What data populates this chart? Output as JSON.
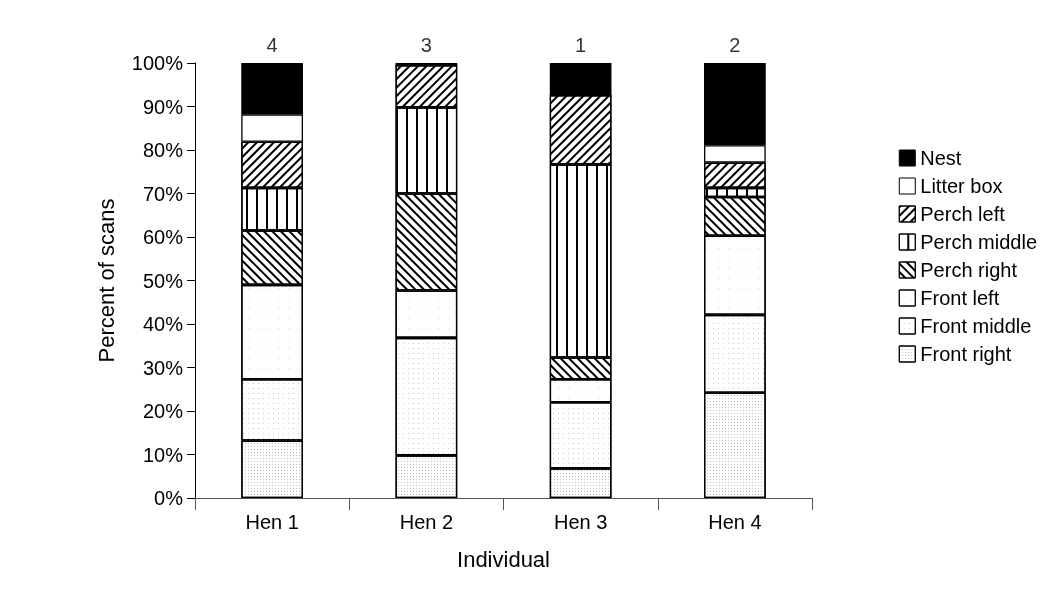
{
  "chart_data": {
    "type": "bar",
    "stacked": true,
    "xlabel": "Individual",
    "ylabel": "Percent of scans",
    "categories": [
      "Hen 1",
      "Hen 2",
      "Hen 3",
      "Hen 4"
    ],
    "series": [
      {
        "name": "Front right",
        "color": "#ffffff",
        "values": [
          13.2,
          9.8,
          6.8,
          24.2
        ]
      },
      {
        "name": "Front middle",
        "color": "#ffffff",
        "values": [
          14.1,
          27.0,
          15.2,
          17.9
        ]
      },
      {
        "name": "Front left",
        "color": "#ffffff",
        "values": [
          21.7,
          10.9,
          5.3,
          18.2
        ]
      },
      {
        "name": "Perch right",
        "color": "#ffffff",
        "values": [
          12.5,
          22.3,
          5.0,
          8.9
        ]
      },
      {
        "name": "Perch middle",
        "color": "#ffffff",
        "values": [
          9.8,
          19.8,
          44.4,
          2.1
        ]
      },
      {
        "name": "Perch left",
        "color": "#ffffff",
        "values": [
          10.6,
          9.7,
          15.9,
          5.8
        ]
      },
      {
        "name": "Litter box",
        "color": "#ffffff",
        "values": [
          6.3,
          0,
          0,
          4.0
        ]
      },
      {
        "name": "Nest",
        "color": "#000000",
        "values": [
          11.8,
          0.5,
          7.4,
          18.9
        ]
      }
    ],
    "annotations": [
      {
        "text": "4",
        "x": "Hen 1",
        "y": 100
      },
      {
        "text": "3",
        "x": "Hen 2",
        "y": 100
      },
      {
        "text": "1",
        "x": "Hen 3",
        "y": 100
      },
      {
        "text": "2",
        "x": "Hen 4",
        "y": 100
      }
    ],
    "ylim": [
      0,
      100
    ],
    "yticks": [
      {
        "value": 0,
        "label": "0%"
      },
      {
        "value": 10,
        "label": "10%"
      },
      {
        "value": 20,
        "label": "20%"
      },
      {
        "value": 30,
        "label": "30%"
      },
      {
        "value": 40,
        "label": "40%"
      },
      {
        "value": 50,
        "label": "50%"
      },
      {
        "value": 60,
        "label": "60%"
      },
      {
        "value": 70,
        "label": "70%"
      },
      {
        "value": 80,
        "label": "80%"
      },
      {
        "value": 90,
        "label": "90%"
      },
      {
        "value": 100,
        "label": "100%"
      }
    ],
    "grid": false,
    "legend": "right"
  }
}
